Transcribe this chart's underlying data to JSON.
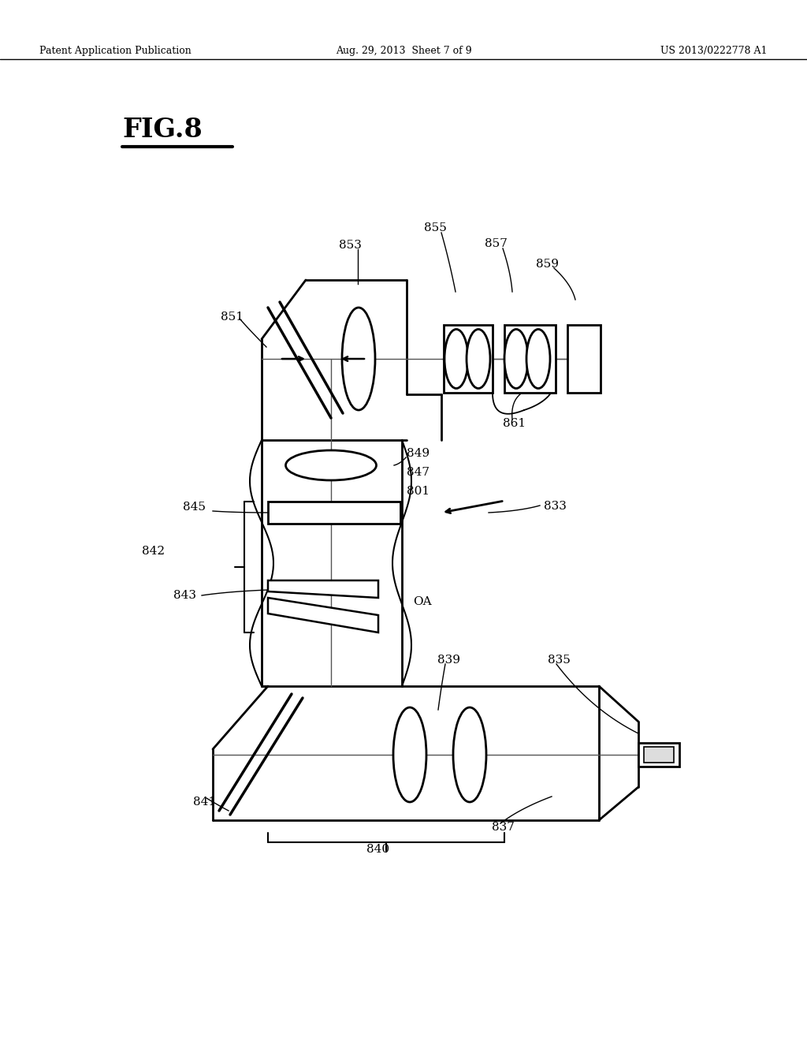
{
  "bg_color": "#ffffff",
  "lc": "#000000",
  "header_left": "Patent Application Publication",
  "header_mid": "Aug. 29, 2013  Sheet 7 of 9",
  "header_right": "US 2013/0222778 A1",
  "fig_label": "FIG.8"
}
